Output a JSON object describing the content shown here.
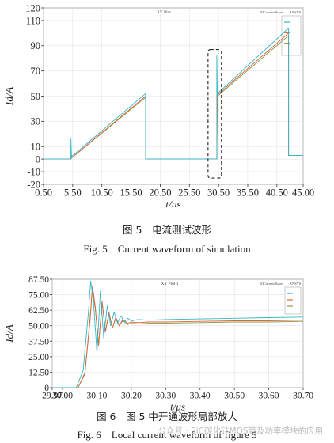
{
  "figures": [
    {
      "caption_cn": "图 5　电流测试波形",
      "caption_en": "Fig. 5　Current waveform of simulation"
    },
    {
      "caption_cn": "图 6　图 5 中开通波形局部放大",
      "caption_en": "Fig. 6　Local current waveform of figure 5"
    }
  ],
  "watermark": "公众号 · SiC碳化硅MOS管及功率模块的应用",
  "chart_data": [
    {
      "type": "line",
      "panel_title": "XY Plot 1",
      "brand": "ANSYS",
      "brand_sub": "SICurrentShare",
      "ylabel": "Id/A",
      "xlabel": "t/μs",
      "xlim": [
        0.5,
        45.0
      ],
      "ylim": [
        -20,
        120
      ],
      "x_ticks": [
        "0.50",
        "5.50",
        "10.50",
        "15.50",
        "20.50",
        "25.50",
        "30.50",
        "35.50",
        "40.50",
        "45.00"
      ],
      "y_ticks": [
        "-20",
        "-10",
        "0",
        "10",
        "30",
        "50",
        "70",
        "90",
        "110",
        "120"
      ],
      "grid": true,
      "legend_position": "top-right",
      "highlight_box": {
        "x": [
          28.7,
          31.0
        ],
        "y": [
          -15,
          87
        ]
      },
      "colors": [
        "#31b7c9",
        "#e0653c",
        "#8b9a48"
      ],
      "series": [
        {
          "x": [
            0.5,
            5.2,
            5.2,
            5.3,
            18.0,
            18.0,
            18.5,
            30.2,
            30.2,
            30.3,
            42.5,
            42.5,
            45.0
          ],
          "y": [
            0,
            0,
            16,
            2,
            52,
            0,
            0,
            0,
            82,
            52,
            104,
            3,
            3
          ]
        },
        {
          "x": [
            0.5,
            5.2,
            5.3,
            18.0,
            18.0,
            30.2,
            30.3,
            42.5,
            42.5,
            45.0
          ],
          "y": [
            0,
            0,
            1,
            50,
            0,
            0,
            51,
            100,
            3,
            3
          ]
        },
        {
          "x": [
            0.5,
            5.2,
            5.3,
            18.0,
            18.0,
            30.2,
            30.3,
            42.5,
            42.5,
            45.0
          ],
          "y": [
            0,
            0,
            1,
            49,
            0,
            0,
            50,
            98,
            3,
            3
          ]
        }
      ]
    },
    {
      "type": "line",
      "panel_title": "XY Plot 1",
      "brand": "ANSYS",
      "brand_sub": "SICurrentShare",
      "ylabel": "Id/A",
      "xlabel": "t/μs",
      "xlim": [
        29.97,
        30.7
      ],
      "ylim": [
        0,
        87.5
      ],
      "x_ticks": [
        "29.97",
        "30.00",
        "30.10",
        "30.20",
        "30.30",
        "30.40",
        "30.50",
        "30.60",
        "30.70"
      ],
      "y_ticks": [
        "0",
        "12.50",
        "25.00",
        "37.50",
        "50.00",
        "62.50",
        "75.00",
        "87.50"
      ],
      "grid": true,
      "legend_position": "top-right",
      "colors": [
        "#31b7c9",
        "#e0653c",
        "#8b9a48"
      ],
      "series": [
        {
          "x": [
            29.97,
            30.04,
            30.06,
            30.075,
            30.082,
            30.09,
            30.1,
            30.11,
            30.12,
            30.13,
            30.14,
            30.15,
            30.16,
            30.17,
            30.18,
            30.19,
            30.2,
            30.22,
            30.25,
            30.3,
            30.4,
            30.5,
            30.6,
            30.7
          ],
          "y": [
            0,
            0,
            14,
            60,
            86,
            70,
            28,
            78,
            40,
            66,
            50,
            61,
            52,
            58,
            53,
            56,
            54,
            55,
            54.5,
            55,
            55.5,
            56,
            56.5,
            57
          ]
        },
        {
          "x": [
            29.97,
            30.045,
            30.065,
            30.08,
            30.087,
            30.095,
            30.105,
            30.115,
            30.125,
            30.135,
            30.145,
            30.155,
            30.165,
            30.175,
            30.19,
            30.2,
            30.22,
            30.25,
            30.3,
            30.4,
            30.5,
            30.6,
            30.7
          ],
          "y": [
            0,
            0,
            12,
            56,
            82,
            66,
            34,
            70,
            45,
            61,
            48,
            57,
            50,
            55,
            52,
            53,
            52.5,
            53,
            53,
            53.5,
            54,
            54,
            54.5
          ]
        },
        {
          "x": [
            29.97,
            30.045,
            30.065,
            30.08,
            30.087,
            30.095,
            30.105,
            30.115,
            30.125,
            30.135,
            30.145,
            30.155,
            30.165,
            30.175,
            30.19,
            30.2,
            30.22,
            30.25,
            30.3,
            30.4,
            30.5,
            30.6,
            30.7
          ],
          "y": [
            0,
            0,
            11,
            54,
            80,
            64,
            35,
            68,
            46,
            60,
            48,
            56,
            50,
            54,
            51,
            52,
            51.5,
            52,
            52,
            52.5,
            53,
            53,
            53.5
          ]
        }
      ]
    }
  ]
}
